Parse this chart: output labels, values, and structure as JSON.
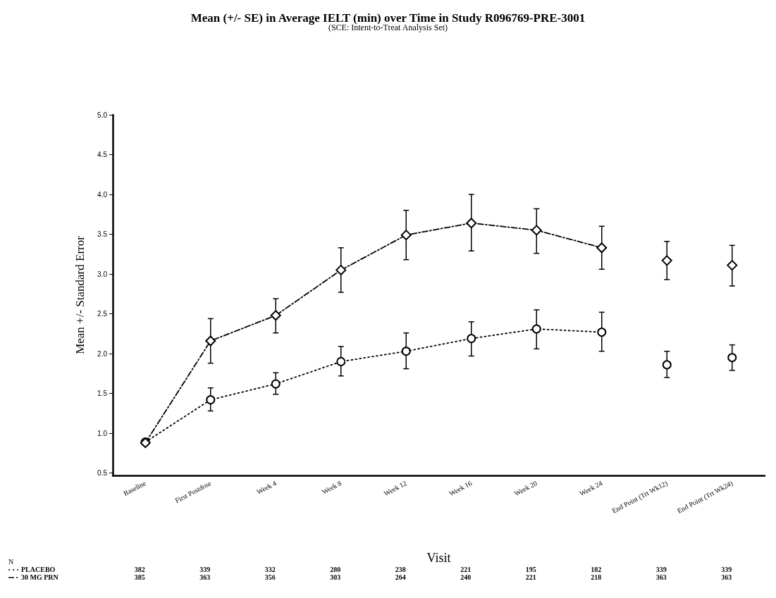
{
  "chart_data": {
    "type": "line",
    "title": "Mean (+/- SE) in Average IELT (min) over Time in Study R096769-PRE-3001",
    "subtitle": "(SCE: Intent-to-Treat Analysis Set)",
    "xlabel": "Visit",
    "ylabel": "Mean +/- Standard Error",
    "categories": [
      "Baseline",
      "First Postdose",
      "Week 4",
      "Week 8",
      "Week 12",
      "Week 16",
      "Week 20",
      "Week 24",
      "End Point (Trt Wk12)",
      "End Point (Trt Wk24)"
    ],
    "ylim": [
      0.47,
      5.0
    ],
    "yticks": [
      {
        "value": 0.5,
        "label": "0.5"
      },
      {
        "value": 1,
        "label": "1.0"
      },
      {
        "value": 1.5,
        "label": "1.5"
      },
      {
        "value": 2,
        "label": "2.0"
      },
      {
        "value": 2.5,
        "label": "2.5"
      },
      {
        "value": 3,
        "label": "3.0"
      },
      {
        "value": 3.5,
        "label": "3.5"
      },
      {
        "value": 4,
        "label": "4.0"
      },
      {
        "value": 4.5,
        "label": "4.5"
      },
      {
        "value": 5,
        "label": "5.0"
      }
    ],
    "legend": "bottom left",
    "series": [
      {
        "name": "PLACEBO",
        "color": "#000000",
        "marker": "circle",
        "line_style": "dotted",
        "values": [
          0.89,
          1.42,
          1.62,
          1.9,
          2.03,
          2.19,
          2.31,
          2.27,
          null,
          null
        ],
        "errors": [
          null,
          [
            1.28,
            1.57
          ],
          [
            1.49,
            1.76
          ],
          [
            1.72,
            2.09
          ],
          [
            1.81,
            2.26
          ],
          [
            1.97,
            2.4
          ],
          [
            2.06,
            2.55
          ],
          [
            2.03,
            2.52
          ],
          null,
          null
        ]
      },
      {
        "name": "30 MG PRN",
        "color": "#000000",
        "marker": "diamond",
        "line_style": "dashed",
        "values": [
          0.88,
          2.16,
          2.48,
          3.05,
          3.49,
          3.64,
          3.55,
          3.33,
          null,
          null
        ],
        "errors": [
          null,
          [
            1.88,
            2.44
          ],
          [
            2.26,
            2.69
          ],
          [
            2.77,
            3.33
          ],
          [
            3.18,
            3.8
          ],
          [
            3.29,
            4.0
          ],
          [
            3.26,
            3.82
          ],
          [
            3.06,
            3.6
          ],
          null,
          null
        ]
      },
      {
        "type": "scatter",
        "color": "#000000",
        "marker": "circle",
        "values": [
          null,
          null,
          null,
          null,
          null,
          null,
          null,
          null,
          1.86,
          1.95
        ],
        "errors": [
          null,
          null,
          null,
          null,
          null,
          null,
          null,
          null,
          [
            1.7,
            2.03
          ],
          [
            1.79,
            2.11
          ]
        ]
      },
      {
        "type": "scatter",
        "color": "#000000",
        "marker": "diamond",
        "values": [
          null,
          null,
          null,
          null,
          null,
          null,
          null,
          null,
          3.17,
          3.11
        ],
        "errors": [
          null,
          null,
          null,
          null,
          null,
          null,
          null,
          null,
          [
            2.93,
            3.41
          ],
          [
            2.85,
            3.36
          ]
        ]
      }
    ],
    "annotations": [
      "N",
      "382",
      "339",
      "332",
      "280",
      "238",
      "221",
      "195",
      "182",
      "339",
      "339",
      "385",
      "363",
      "356",
      "303",
      "264",
      "240",
      "221",
      "218",
      "363",
      "363"
    ]
  }
}
